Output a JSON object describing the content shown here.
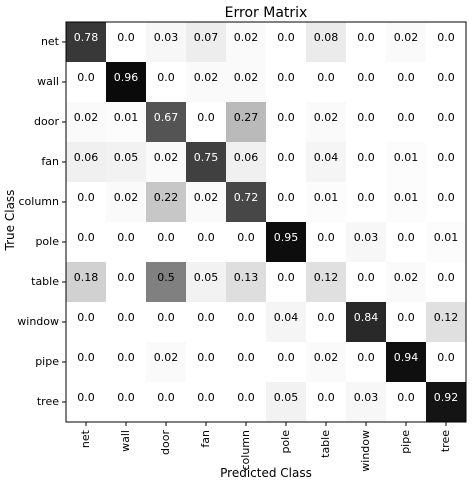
{
  "chart_data": {
    "type": "heatmap",
    "title": "Error Matrix",
    "xlabel": "Predicted Class",
    "ylabel": "True Class",
    "row_labels": [
      "net",
      "wall",
      "door",
      "fan",
      "column",
      "pole",
      "table",
      "window",
      "pipe",
      "tree"
    ],
    "col_labels": [
      "net",
      "wall",
      "door",
      "fan",
      "column",
      "pole",
      "table",
      "window",
      "pipe",
      "tree"
    ],
    "color_scale": {
      "min": 0.0,
      "max": 1.0,
      "low_color": "#ffffff",
      "high_color": "#000000"
    },
    "grid": false,
    "values": [
      [
        0.78,
        0.0,
        0.03,
        0.07,
        0.02,
        0.0,
        0.08,
        0.0,
        0.02,
        0.0
      ],
      [
        0.0,
        0.96,
        0.0,
        0.02,
        0.02,
        0.0,
        0.0,
        0.0,
        0.0,
        0.0
      ],
      [
        0.02,
        0.01,
        0.67,
        0.0,
        0.27,
        0.0,
        0.02,
        0.0,
        0.0,
        0.0
      ],
      [
        0.06,
        0.05,
        0.02,
        0.75,
        0.06,
        0.0,
        0.04,
        0.0,
        0.01,
        0.0
      ],
      [
        0.0,
        0.02,
        0.22,
        0.02,
        0.72,
        0.0,
        0.01,
        0.0,
        0.01,
        0.0
      ],
      [
        0.0,
        0.0,
        0.0,
        0.0,
        0.0,
        0.95,
        0.0,
        0.03,
        0.0,
        0.01
      ],
      [
        0.18,
        0.0,
        0.5,
        0.05,
        0.13,
        0.0,
        0.12,
        0.0,
        0.02,
        0.0
      ],
      [
        0.0,
        0.0,
        0.0,
        0.0,
        0.0,
        0.04,
        0.0,
        0.84,
        0.0,
        0.12
      ],
      [
        0.0,
        0.0,
        0.02,
        0.0,
        0.0,
        0.0,
        0.02,
        0.0,
        0.94,
        0.0
      ],
      [
        0.0,
        0.0,
        0.0,
        0.0,
        0.0,
        0.05,
        0.0,
        0.03,
        0.0,
        0.92
      ]
    ]
  }
}
